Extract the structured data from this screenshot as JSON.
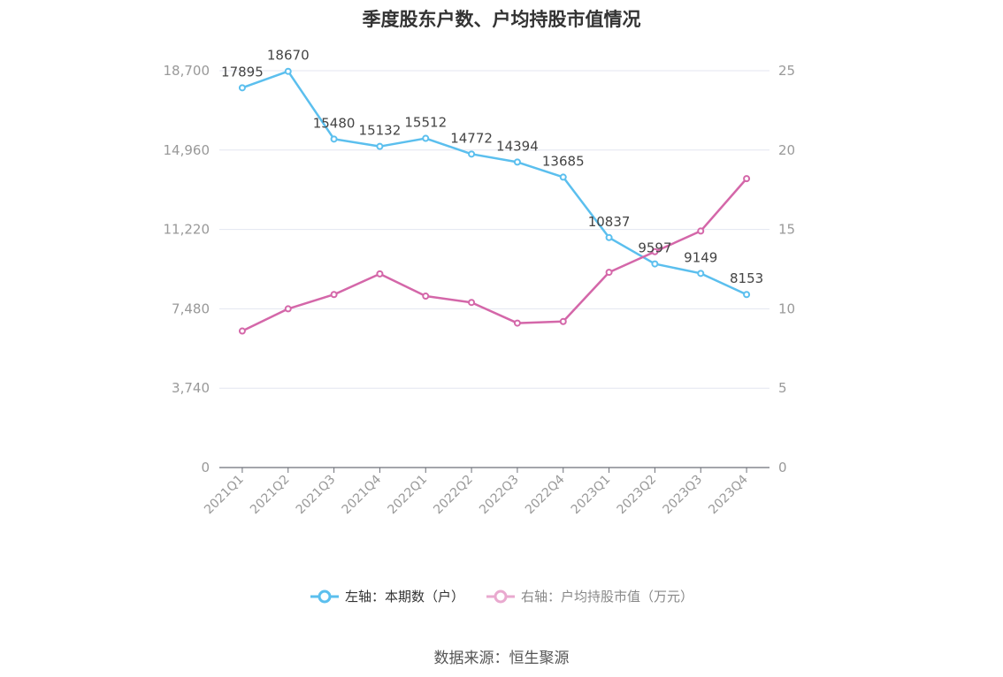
{
  "title": "季度股东户数、户均持股市值情况",
  "source": "数据来源：恒生聚源",
  "chart_data": {
    "type": "line",
    "categories": [
      "2021Q1",
      "2021Q2",
      "2021Q3",
      "2021Q4",
      "2022Q1",
      "2022Q2",
      "2022Q3",
      "2022Q4",
      "2023Q1",
      "2023Q2",
      "2023Q3",
      "2023Q4"
    ],
    "y_left": {
      "min": 0,
      "max": 18700,
      "ticks": [
        "0",
        "3,740",
        "7,480",
        "11,220",
        "14,960",
        "18,700"
      ]
    },
    "y_right": {
      "min": 0,
      "max": 25,
      "ticks": [
        "0",
        "5",
        "10",
        "15",
        "20",
        "25"
      ]
    },
    "series": [
      {
        "name": "左轴：本期数（户）",
        "axis": "left",
        "color": "#5bbfee",
        "values": [
          17895,
          18670,
          15480,
          15132,
          15512,
          14772,
          14394,
          13685,
          10837,
          9597,
          9149,
          8153
        ],
        "labels": [
          "17895",
          "18670",
          "15480",
          "15132",
          "15512",
          "14772",
          "14394",
          "13685",
          "10837",
          "9597",
          "9149",
          "8153"
        ]
      },
      {
        "name": "右轴：户均持股市值（万元）",
        "axis": "right",
        "color": "#d467a9",
        "values": [
          8.6,
          10.0,
          10.9,
          12.2,
          10.8,
          10.4,
          9.1,
          9.2,
          12.3,
          13.6,
          14.9,
          18.2
        ]
      }
    ],
    "grid": true,
    "legend_position": "bottom"
  }
}
